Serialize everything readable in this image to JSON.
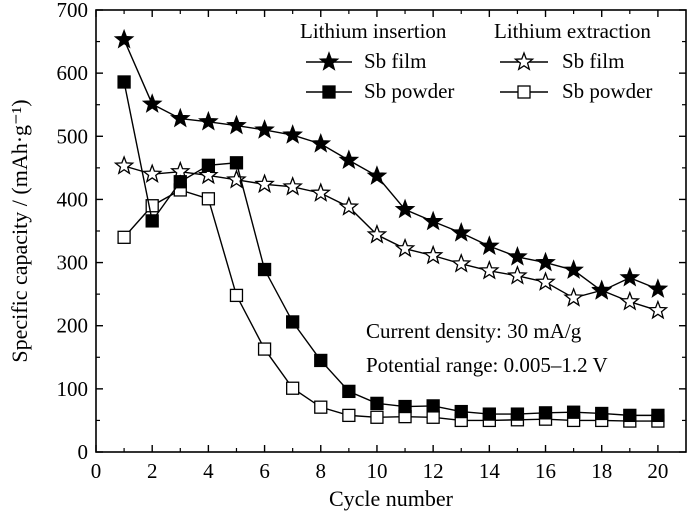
{
  "chart_data": {
    "type": "line",
    "xlabel": "Cycle number",
    "ylabel": "Specific capacity / (mAh·g⁻¹)",
    "xlim": [
      0,
      21
    ],
    "ylim": [
      0,
      700
    ],
    "xticks": [
      0,
      2,
      4,
      6,
      8,
      10,
      12,
      14,
      16,
      18,
      20
    ],
    "yticks": [
      0,
      100,
      200,
      300,
      400,
      500,
      600,
      700
    ],
    "grid": false,
    "legend_groups": [
      "Lithium insertion",
      "Lithium extraction"
    ],
    "series": [
      {
        "name": "Sb film",
        "group": "Lithium insertion",
        "marker": "star-filled",
        "x": [
          1,
          2,
          3,
          4,
          5,
          6,
          7,
          8,
          9,
          10,
          11,
          12,
          13,
          14,
          15,
          16,
          17,
          18,
          19,
          20
        ],
        "values": [
          653,
          551,
          528,
          523,
          517,
          510,
          502,
          488,
          462,
          437,
          384,
          365,
          347,
          326,
          309,
          300,
          288,
          255,
          276,
          258
        ]
      },
      {
        "name": "Sb powder",
        "group": "Lithium insertion",
        "marker": "square-filled",
        "x": [
          1,
          2,
          3,
          4,
          5,
          6,
          7,
          8,
          9,
          10,
          11,
          12,
          13,
          14,
          15,
          16,
          17,
          18,
          19,
          20
        ],
        "values": [
          586,
          366,
          428,
          454,
          458,
          289,
          206,
          145,
          96,
          77,
          72,
          73,
          64,
          60,
          60,
          62,
          63,
          61,
          58,
          58
        ]
      },
      {
        "name": "Sb film",
        "group": "Lithium extraction",
        "marker": "star-open",
        "x": [
          1,
          2,
          3,
          4,
          5,
          6,
          7,
          8,
          9,
          10,
          11,
          12,
          13,
          14,
          15,
          16,
          17,
          18,
          19,
          20
        ],
        "values": [
          453,
          440,
          444,
          438,
          431,
          424,
          420,
          410,
          388,
          344,
          322,
          311,
          298,
          287,
          279,
          269,
          244,
          256,
          238,
          224
        ]
      },
      {
        "name": "Sb powder",
        "group": "Lithium extraction",
        "marker": "square-open",
        "x": [
          1,
          2,
          3,
          4,
          5,
          6,
          7,
          8,
          9,
          10,
          11,
          12,
          13,
          14,
          15,
          16,
          17,
          18,
          19,
          20
        ],
        "values": [
          340,
          390,
          415,
          401,
          248,
          163,
          101,
          71,
          58,
          55,
          56,
          55,
          50,
          50,
          51,
          52,
          50,
          50,
          49,
          49
        ]
      }
    ],
    "annotations": [
      "Current density: 30 mA/g",
      "Potential range: 0.005–1.2 V"
    ]
  }
}
